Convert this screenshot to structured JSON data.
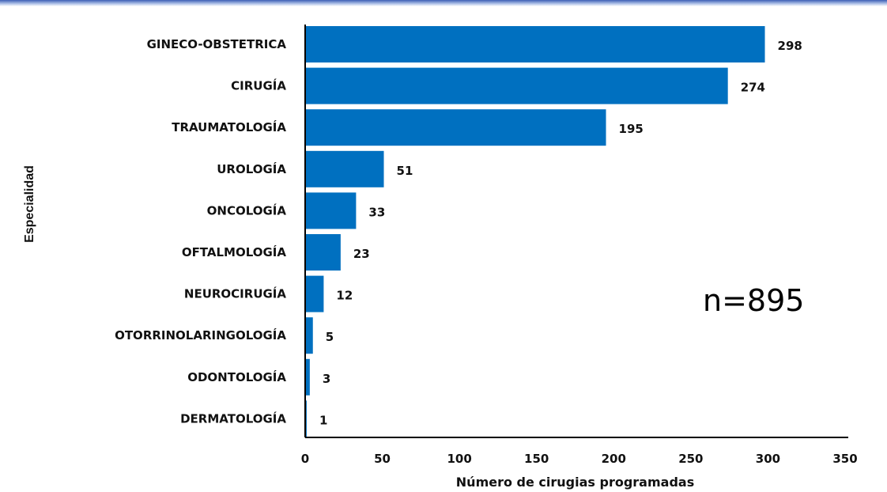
{
  "chart_data": {
    "type": "bar",
    "orientation": "horizontal",
    "categories": [
      "GINECO-OBSTETRICA",
      "CIRUGÍA",
      "TRAUMATOLOGÍA",
      "UROLOGÍA",
      "ONCOLOGÍA",
      "OFTALMOLOGÍA",
      "NEUROCIRUGÍA",
      "OTORRINOLARINGOLOGÍA",
      "ODONTOLOGÍA",
      "DERMATOLOGÍA"
    ],
    "values": [
      298,
      274,
      195,
      51,
      33,
      23,
      12,
      5,
      3,
      1
    ],
    "xlabel": "Número de cirugias programadas",
    "ylabel": "Especialidad",
    "xlim": [
      0,
      350
    ],
    "xticks": [
      0,
      50,
      100,
      150,
      200,
      250,
      300,
      350
    ],
    "annotation": "n=895",
    "bar_color": "#0070c0",
    "grid": false,
    "legend": "none"
  }
}
